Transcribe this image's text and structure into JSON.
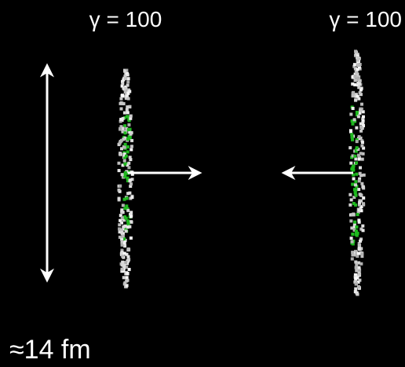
{
  "left_nucleus": {
    "label": "γ = 100"
  },
  "right_nucleus": {
    "label": "γ = 100"
  },
  "size_label": "≈14 fm"
}
